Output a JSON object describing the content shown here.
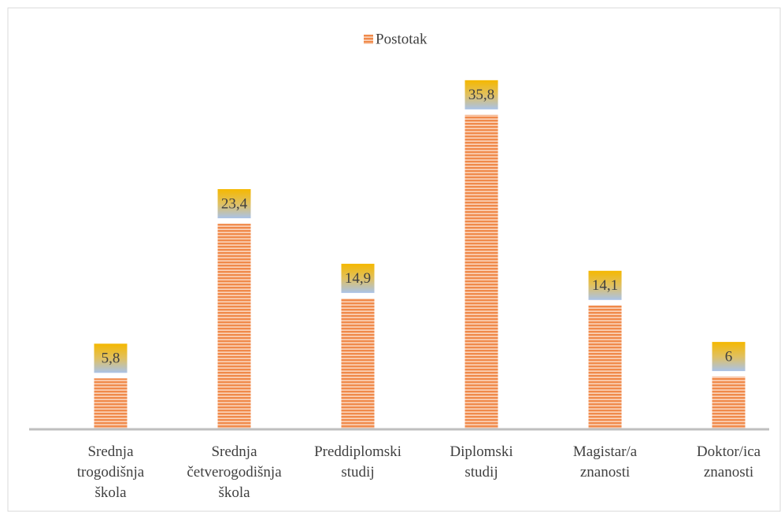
{
  "chart_data": {
    "type": "bar",
    "legend": "Postotak",
    "series": [
      {
        "name": "Postotak",
        "color": "#f4a460",
        "values": [
          5.8,
          23.4,
          14.9,
          35.8,
          14.1,
          6
        ],
        "value_labels": [
          "5,8",
          "23,4",
          "14,9",
          "35,8",
          "14,1",
          "6"
        ]
      }
    ],
    "categories": [
      "Srednja\ntrogodišnja\nškola",
      "Srednja\nčetverogodišnja\nškola",
      "Preddiplomski\nstudij",
      "Diplomski\nstudij",
      "Magistar/a\nznanosti",
      "Doktor/ica\nznanosti"
    ],
    "ylim": [
      0,
      40
    ],
    "legend_position": "top"
  }
}
